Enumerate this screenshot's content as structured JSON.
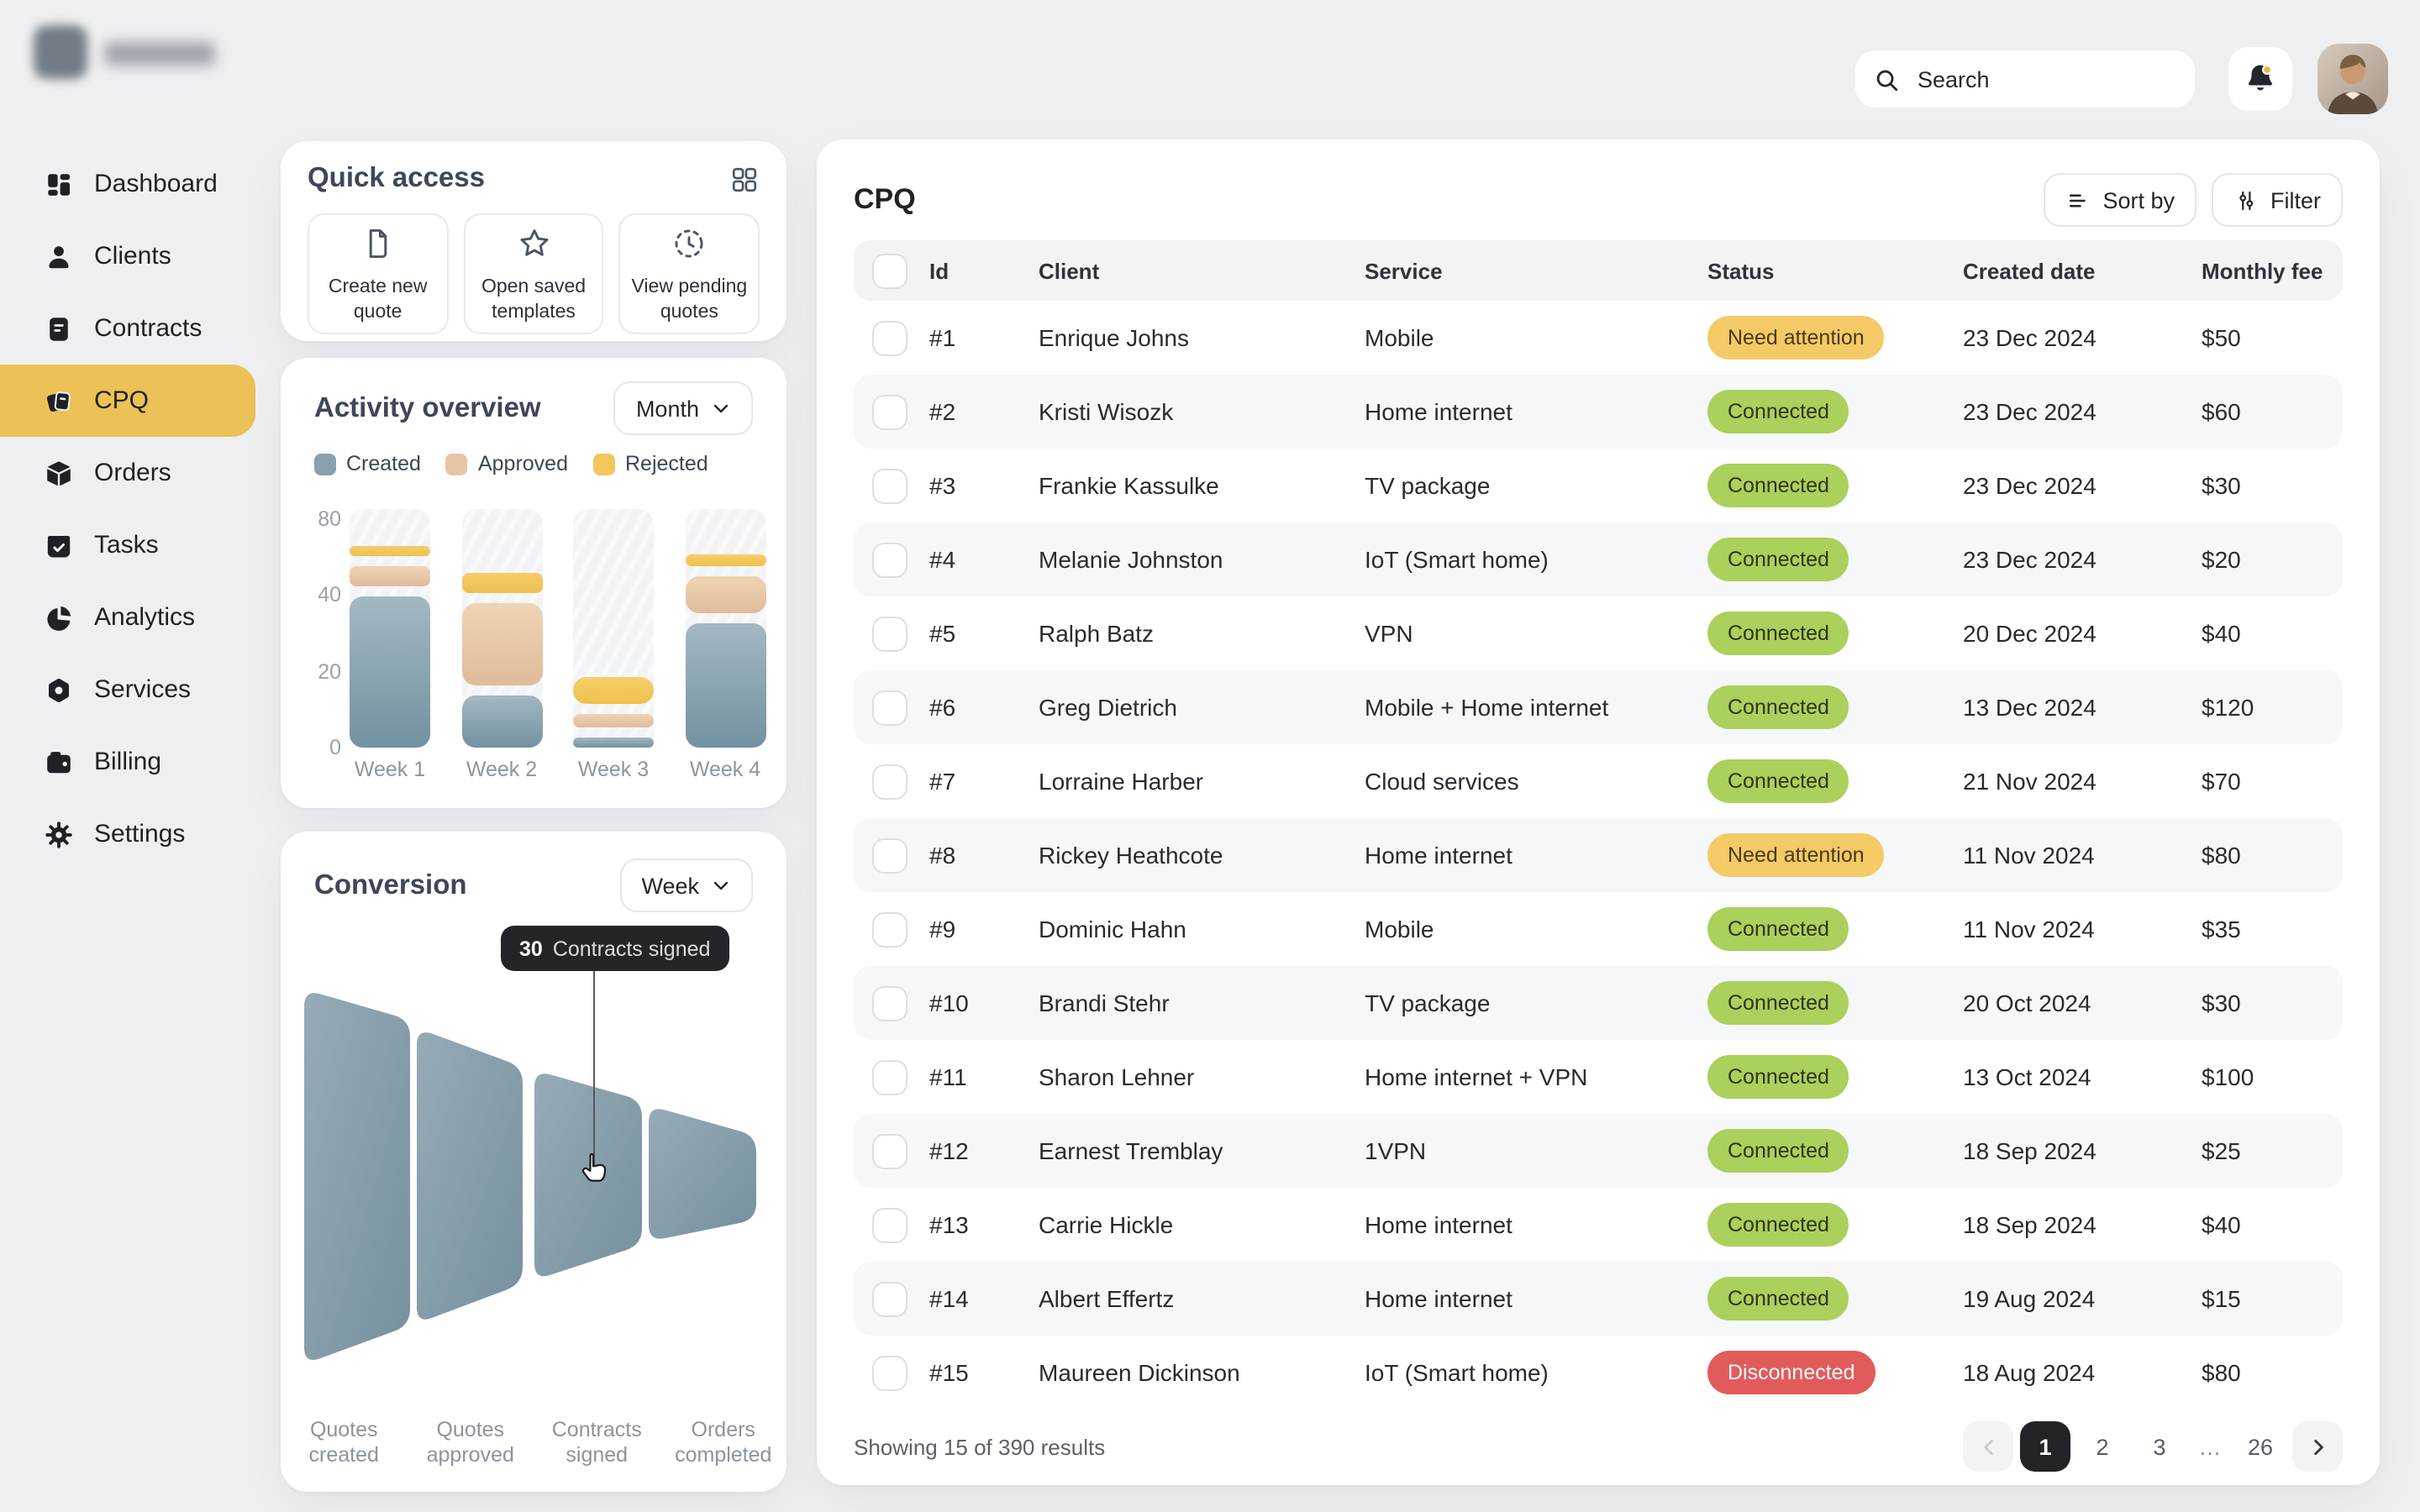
{
  "header": {
    "search_placeholder": "Search",
    "icons": [
      "search-icon",
      "bell-icon",
      "avatar"
    ]
  },
  "sidebar": {
    "items": [
      {
        "label": "Dashboard",
        "icon": "dashboard-icon",
        "active": false
      },
      {
        "label": "Clients",
        "icon": "clients-icon",
        "active": false
      },
      {
        "label": "Contracts",
        "icon": "contracts-icon",
        "active": false
      },
      {
        "label": "CPQ",
        "icon": "cpq-icon",
        "active": true
      },
      {
        "label": "Orders",
        "icon": "orders-icon",
        "active": false
      },
      {
        "label": "Tasks",
        "icon": "tasks-icon",
        "active": false
      },
      {
        "label": "Analytics",
        "icon": "analytics-icon",
        "active": false
      },
      {
        "label": "Services",
        "icon": "services-icon",
        "active": false
      },
      {
        "label": "Billing",
        "icon": "billing-icon",
        "active": false
      },
      {
        "label": "Settings",
        "icon": "settings-icon",
        "active": false
      }
    ],
    "active_color": "#ecc155"
  },
  "quick_access": {
    "title": "Quick access",
    "corner_icon": "grid-icon",
    "actions": [
      {
        "label": "Create new quote",
        "icon": "document-icon"
      },
      {
        "label": "Open saved templates",
        "icon": "star-icon"
      },
      {
        "label": "View pending quotes",
        "icon": "pending-clock-icon"
      }
    ]
  },
  "activity": {
    "title": "Activity overview",
    "period": "Month",
    "legend": [
      {
        "label": "Created",
        "color": "#87a1ae"
      },
      {
        "label": "Approved",
        "color": "#e5c5a5"
      },
      {
        "label": "Rejected",
        "color": "#f1c65c"
      }
    ]
  },
  "conversion": {
    "title": "Conversion",
    "period": "Week",
    "tooltip": {
      "value": "30",
      "label": "Contracts signed"
    }
  },
  "table": {
    "title": "CPQ",
    "sort_label": "Sort by",
    "filter_label": "Filter",
    "columns": [
      "Id",
      "Client",
      "Service",
      "Status",
      "Created date",
      "Monthly fee"
    ],
    "rows": [
      {
        "id": "#1",
        "client": "Enrique Johns",
        "service": "Mobile",
        "status": "Need attention",
        "status_type": "attention",
        "date": "23 Dec 2024",
        "fee": "$50"
      },
      {
        "id": "#2",
        "client": "Kristi Wisozk",
        "service": "Home internet",
        "status": "Connected",
        "status_type": "connected",
        "date": "23 Dec 2024",
        "fee": "$60"
      },
      {
        "id": "#3",
        "client": "Frankie Kassulke",
        "service": "TV package",
        "status": "Connected",
        "status_type": "connected",
        "date": "23 Dec 2024",
        "fee": "$30"
      },
      {
        "id": "#4",
        "client": "Melanie Johnston",
        "service": "IoT (Smart home)",
        "status": "Connected",
        "status_type": "connected",
        "date": "23 Dec 2024",
        "fee": "$20"
      },
      {
        "id": "#5",
        "client": "Ralph Batz",
        "service": "VPN",
        "status": "Connected",
        "status_type": "connected",
        "date": "20 Dec 2024",
        "fee": "$40"
      },
      {
        "id": "#6",
        "client": "Greg Dietrich",
        "service": "Mobile + Home internet",
        "status": "Connected",
        "status_type": "connected",
        "date": "13 Dec 2024",
        "fee": "$120"
      },
      {
        "id": "#7",
        "client": "Lorraine Harber",
        "service": "Cloud services",
        "status": "Connected",
        "status_type": "connected",
        "date": "21 Nov 2024",
        "fee": "$70"
      },
      {
        "id": "#8",
        "client": "Rickey Heathcote",
        "service": "Home internet",
        "status": "Need attention",
        "status_type": "attention",
        "date": "11 Nov 2024",
        "fee": "$80"
      },
      {
        "id": "#9",
        "client": "Dominic Hahn",
        "service": "Mobile",
        "status": "Connected",
        "status_type": "connected",
        "date": "11 Nov 2024",
        "fee": "$35"
      },
      {
        "id": "#10",
        "client": "Brandi Stehr",
        "service": "TV package",
        "status": "Connected",
        "status_type": "connected",
        "date": "20 Oct 2024",
        "fee": "$30"
      },
      {
        "id": "#11",
        "client": "Sharon Lehner",
        "service": "Home internet + VPN",
        "status": "Connected",
        "status_type": "connected",
        "date": "13 Oct 2024",
        "fee": "$100"
      },
      {
        "id": "#12",
        "client": "Earnest Tremblay",
        "service": "1VPN",
        "status": "Connected",
        "status_type": "connected",
        "date": "18 Sep 2024",
        "fee": "$25"
      },
      {
        "id": "#13",
        "client": "Carrie Hickle",
        "service": "Home internet",
        "status": "Connected",
        "status_type": "connected",
        "date": "18 Sep 2024",
        "fee": "$40"
      },
      {
        "id": "#14",
        "client": "Albert Effertz",
        "service": "Home internet",
        "status": "Connected",
        "status_type": "connected",
        "date": "19 Aug 2024",
        "fee": "$15"
      },
      {
        "id": "#15",
        "client": "Maureen Dickinson",
        "service": "IoT (Smart home)",
        "status": "Disconnected",
        "status_type": "disconnected",
        "date": "18 Aug 2024",
        "fee": "$80"
      }
    ],
    "status_colors": {
      "connected": "#abd05c",
      "attention": "#f4ca67",
      "disconnected": "#e25b5b"
    },
    "footer": "Showing 15 of 390 results",
    "pagination": {
      "pages": [
        "1",
        "2",
        "3",
        "…",
        "26"
      ],
      "active": "1"
    }
  },
  "chart_data": [
    {
      "type": "bar",
      "stacked": true,
      "title": "Activity overview",
      "categories": [
        "Week 1",
        "Week 2",
        "Week 3",
        "Week 4"
      ],
      "series": [
        {
          "name": "Created",
          "color": "#87a1ae",
          "values": [
            42,
            15,
            4,
            34
          ]
        },
        {
          "name": "Approved",
          "color": "#e5c5a5",
          "values": [
            13,
            23,
            5,
            16
          ]
        },
        {
          "name": "Rejected",
          "color": "#f1c65c",
          "values": [
            8,
            11,
            8,
            9
          ]
        }
      ],
      "ylim": [
        0,
        80
      ],
      "yticks": [
        0,
        20,
        40,
        80
      ],
      "grid": false,
      "legend_position": "top"
    },
    {
      "type": "funnel",
      "title": "Conversion",
      "stages": [
        "Quotes created",
        "Quotes approved",
        "Contracts signed",
        "Orders completed"
      ],
      "values": [
        58,
        43,
        30,
        19
      ],
      "labeled_value": {
        "stage": "Contracts signed",
        "value": 30
      },
      "color": "#87a0ad"
    }
  ]
}
